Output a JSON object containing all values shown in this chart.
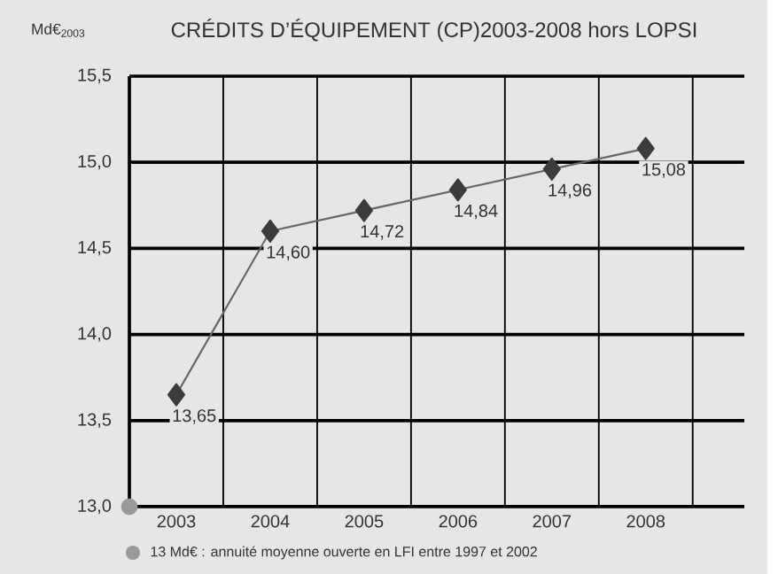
{
  "chart_data": {
    "type": "line",
    "title": "CRÉDITS D’ÉQUIPEMENT (CP)2003-2008 hors LOPSI",
    "ylabel": "Md€$_{2003}$",
    "categories": [
      "2003",
      "2004",
      "2005",
      "2006",
      "2007",
      "2008"
    ],
    "series": [
      {
        "color": "#3c3c3c",
        "values": [
          13.65,
          14.6,
          14.72,
          14.84,
          14.96,
          15.08
        ],
        "value_labels": [
          "13,65",
          "14,60",
          "14,72",
          "14,84",
          "14,96",
          "15,08"
        ]
      }
    ],
    "ylim": [
      13.0,
      15.5
    ],
    "yticks": [
      {
        "value": 13.0,
        "label": "13,0"
      },
      {
        "value": 13.5,
        "label": "13,5"
      },
      {
        "value": 14.0,
        "label": "14,0"
      },
      {
        "value": 14.5,
        "label": "14,5"
      },
      {
        "value": 15.0,
        "label": "15,0"
      },
      {
        "value": 15.5,
        "label": "15,5"
      }
    ],
    "annotations": [
      "13 Md€ : annuité moyenne ouverte en LFI entre 1997 et 2002"
    ],
    "grid": true,
    "marker": "diamond",
    "line_style": "solid"
  }
}
